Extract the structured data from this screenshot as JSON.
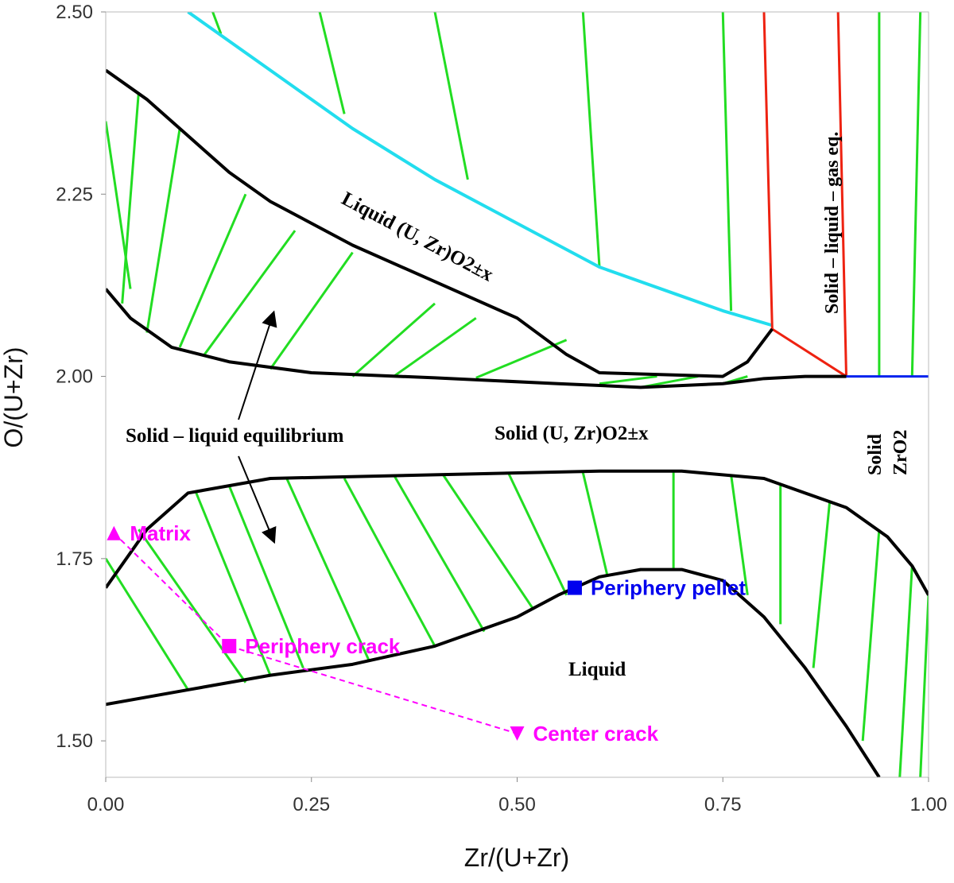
{
  "chart_data": {
    "type": "scatter",
    "xlabel": "Zr/(U+Zr)",
    "ylabel": "O/(U+Zr)",
    "xlim": [
      0.0,
      1.0
    ],
    "ylim": [
      1.45,
      2.5
    ],
    "xticks": [
      "0.00",
      "0.25",
      "0.50",
      "0.75",
      "1.00"
    ],
    "yticks": [
      "1.50",
      "1.75",
      "2.00",
      "2.25",
      "2.50"
    ],
    "grid": false,
    "colors": {
      "boundary": "#000000",
      "tie_line": "#22dd22",
      "liquidus_cyan": "#22ddee",
      "three_phase": "#ee2211",
      "zro2_boundary": "#0022ee",
      "measured_magenta": "#ff00ff",
      "periphery_pellet": "#0000ee"
    },
    "region_labels": {
      "liquid_upper": "Liquid (U, Zr)O2±x",
      "solid_liquid_gas": "Solid – liquid – gas eq.",
      "solid_liquid": "Solid – liquid equilibrium",
      "solid_oxide": "Solid (U, Zr)O2±x",
      "solid_zro2_1": "Solid",
      "solid_zro2_2": "ZrO2",
      "liquid_lower": "Liquid"
    },
    "points": [
      {
        "name": "Matrix",
        "x": 0.01,
        "y": 1.785,
        "marker": "triangle-up"
      },
      {
        "name": "Periphery crack",
        "x": 0.15,
        "y": 1.63,
        "marker": "square"
      },
      {
        "name": "Center crack",
        "x": 0.5,
        "y": 1.51,
        "marker": "triangle-down"
      },
      {
        "name": "Periphery pellet",
        "x": 0.57,
        "y": 1.71,
        "marker": "square"
      }
    ],
    "dashed_path": [
      "Matrix",
      "Periphery crack",
      "Center crack"
    ],
    "curves": {
      "cyan_liquidus": [
        [
          0.1,
          2.5
        ],
        [
          0.2,
          2.42
        ],
        [
          0.3,
          2.34
        ],
        [
          0.4,
          2.27
        ],
        [
          0.5,
          2.21
        ],
        [
          0.6,
          2.15
        ],
        [
          0.7,
          2.11
        ],
        [
          0.75,
          2.09
        ],
        [
          0.81,
          2.07
        ]
      ],
      "upper_solidus": [
        [
          0.0,
          2.42
        ],
        [
          0.05,
          2.38
        ],
        [
          0.1,
          2.33
        ],
        [
          0.15,
          2.28
        ],
        [
          0.2,
          2.24
        ],
        [
          0.3,
          2.18
        ],
        [
          0.4,
          2.13
        ],
        [
          0.5,
          2.08
        ],
        [
          0.56,
          2.03
        ],
        [
          0.6,
          2.005
        ],
        [
          0.75,
          2.0
        ],
        [
          0.78,
          2.02
        ],
        [
          0.81,
          2.065
        ]
      ],
      "upper_lower_bound": [
        [
          0.0,
          2.12
        ],
        [
          0.03,
          2.08
        ],
        [
          0.08,
          2.04
        ],
        [
          0.15,
          2.02
        ],
        [
          0.25,
          2.005
        ],
        [
          0.4,
          1.998
        ],
        [
          0.55,
          1.99
        ],
        [
          0.65,
          1.985
        ],
        [
          0.75,
          1.99
        ],
        [
          0.8,
          1.997
        ],
        [
          0.85,
          2.0
        ],
        [
          0.9,
          2.0
        ]
      ],
      "red_three_phase": [
        [
          0.8,
          2.5
        ],
        [
          0.81,
          2.065
        ],
        [
          0.9,
          2.0
        ],
        [
          0.89,
          2.5
        ]
      ],
      "blue_boundary": [
        [
          0.9,
          2.0
        ],
        [
          1.0,
          2.0
        ]
      ],
      "lower_solidus_upper": [
        [
          0.0,
          1.71
        ],
        [
          0.05,
          1.79
        ],
        [
          0.1,
          1.84
        ],
        [
          0.2,
          1.86
        ],
        [
          0.4,
          1.865
        ],
        [
          0.6,
          1.87
        ],
        [
          0.7,
          1.87
        ],
        [
          0.8,
          1.86
        ],
        [
          0.9,
          1.82
        ],
        [
          0.95,
          1.78
        ],
        [
          0.98,
          1.74
        ],
        [
          1.0,
          1.7
        ]
      ],
      "lower_liquidus": [
        [
          0.0,
          1.55
        ],
        [
          0.1,
          1.57
        ],
        [
          0.2,
          1.59
        ],
        [
          0.3,
          1.605
        ],
        [
          0.4,
          1.63
        ],
        [
          0.5,
          1.67
        ],
        [
          0.55,
          1.7
        ],
        [
          0.6,
          1.725
        ],
        [
          0.65,
          1.735
        ],
        [
          0.7,
          1.735
        ],
        [
          0.75,
          1.72
        ],
        [
          0.8,
          1.67
        ],
        [
          0.85,
          1.6
        ],
        [
          0.9,
          1.52
        ],
        [
          0.94,
          1.45
        ]
      ]
    },
    "tie_lines": [
      [
        [
          0.0,
          2.35
        ],
        [
          0.03,
          2.12
        ]
      ],
      [
        [
          0.04,
          2.39
        ],
        [
          0.02,
          2.1
        ]
      ],
      [
        [
          0.09,
          2.34
        ],
        [
          0.05,
          2.06
        ]
      ],
      [
        [
          0.17,
          2.25
        ],
        [
          0.09,
          2.04
        ]
      ],
      [
        [
          0.23,
          2.2
        ],
        [
          0.12,
          2.03
        ]
      ],
      [
        [
          0.3,
          2.17
        ],
        [
          0.2,
          2.01
        ]
      ],
      [
        [
          0.4,
          2.1
        ],
        [
          0.3,
          2.0
        ]
      ],
      [
        [
          0.45,
          2.08
        ],
        [
          0.35,
          2.0
        ]
      ],
      [
        [
          0.56,
          2.05
        ],
        [
          0.45,
          1.998
        ]
      ],
      [
        [
          0.67,
          2.0
        ],
        [
          0.6,
          1.99
        ]
      ],
      [
        [
          0.72,
          2.0
        ],
        [
          0.65,
          1.985
        ]
      ],
      [
        [
          0.78,
          2.0
        ],
        [
          0.75,
          1.99
        ]
      ],
      [
        [
          0.13,
          2.5
        ],
        [
          0.14,
          2.47
        ]
      ],
      [
        [
          0.26,
          2.5
        ],
        [
          0.29,
          2.36
        ]
      ],
      [
        [
          0.4,
          2.5
        ],
        [
          0.44,
          2.27
        ]
      ],
      [
        [
          0.58,
          2.5
        ],
        [
          0.6,
          2.15
        ]
      ],
      [
        [
          0.75,
          2.5
        ],
        [
          0.76,
          2.09
        ]
      ],
      [
        [
          0.94,
          2.5
        ],
        [
          0.94,
          2.0
        ]
      ],
      [
        [
          0.99,
          2.5
        ],
        [
          0.98,
          2.0
        ]
      ],
      [
        [
          0.0,
          1.75
        ],
        [
          0.1,
          1.57
        ]
      ],
      [
        [
          0.04,
          1.79
        ],
        [
          0.17,
          1.58
        ]
      ],
      [
        [
          0.11,
          1.84
        ],
        [
          0.2,
          1.59
        ]
      ],
      [
        [
          0.15,
          1.85
        ],
        [
          0.24,
          1.6
        ]
      ],
      [
        [
          0.22,
          1.86
        ],
        [
          0.32,
          1.61
        ]
      ],
      [
        [
          0.29,
          1.86
        ],
        [
          0.4,
          1.63
        ]
      ],
      [
        [
          0.35,
          1.865
        ],
        [
          0.46,
          1.65
        ]
      ],
      [
        [
          0.41,
          1.865
        ],
        [
          0.52,
          1.68
        ]
      ],
      [
        [
          0.49,
          1.866
        ],
        [
          0.56,
          1.7
        ]
      ],
      [
        [
          0.58,
          1.868
        ],
        [
          0.61,
          1.725
        ]
      ],
      [
        [
          0.69,
          1.87
        ],
        [
          0.69,
          1.735
        ]
      ],
      [
        [
          0.76,
          1.865
        ],
        [
          0.78,
          1.7
        ]
      ],
      [
        [
          0.82,
          1.85
        ],
        [
          0.82,
          1.66
        ]
      ],
      [
        [
          0.88,
          1.83
        ],
        [
          0.86,
          1.6
        ]
      ],
      [
        [
          0.94,
          1.79
        ],
        [
          0.92,
          1.5
        ]
      ],
      [
        [
          0.98,
          1.74
        ],
        [
          0.965,
          1.45
        ]
      ],
      [
        [
          1.0,
          1.7
        ],
        [
          0.99,
          1.45
        ]
      ]
    ]
  }
}
